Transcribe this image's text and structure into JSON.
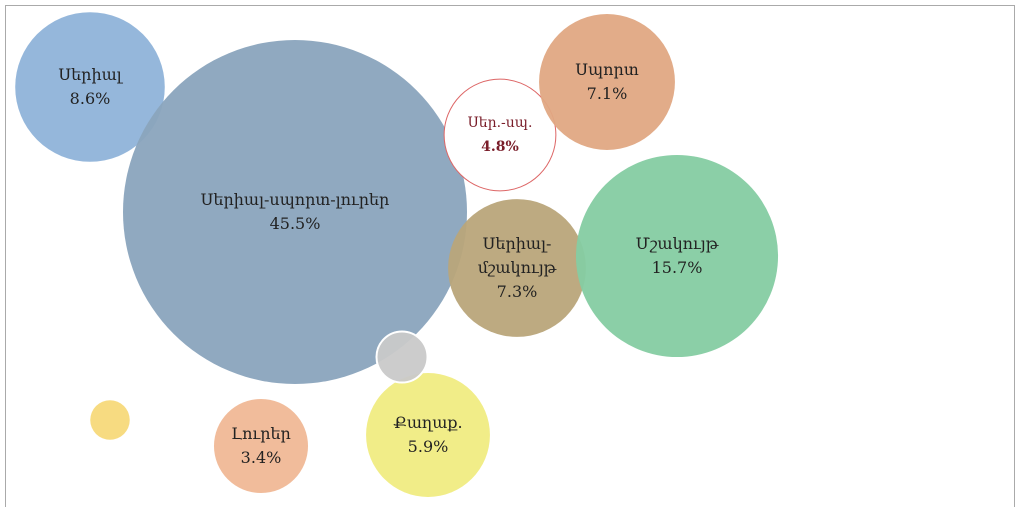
{
  "chart_data": {
    "type": "bubble",
    "categories": [
      "Սերիալ",
      "Սերիալ-սպորտ-լուրեր",
      "Սեր.-սպ.",
      "Սպորտ",
      "Սերիալ-\nմշակույթ",
      "Մշակույթ",
      "Քաղաք.",
      "Լուրեր",
      null,
      null
    ],
    "values": [
      8.6,
      45.5,
      4.8,
      7.1,
      7.3,
      15.7,
      5.9,
      3.4,
      0.6,
      1.0
    ],
    "value_labels": [
      "8.6%",
      "45.5%",
      "4.8%",
      "7.1%",
      "7.3%",
      "15.7%",
      "5.9%",
      "3.4%",
      null,
      null
    ],
    "colors": [
      "#8fb3d9",
      "#8aa4bd",
      "#ffffff",
      "#e0a883",
      "#b9a57a",
      "#85cca2",
      "#f0ec82",
      "#f0b896",
      "#f7d97a",
      "#c9c9c9"
    ]
  }
}
